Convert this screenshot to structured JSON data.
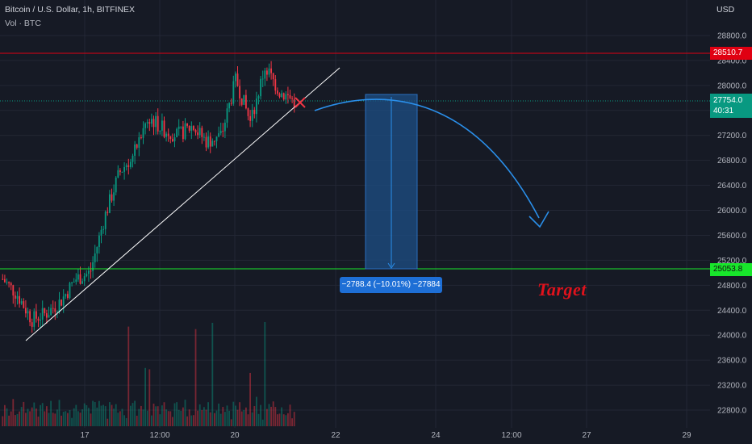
{
  "header": {
    "symbol_line": "Bitcoin / U.S. Dollar, 1h, BITFINEX",
    "volume_line": "Vol · BTC"
  },
  "price_scale": {
    "currency": "USD",
    "ticks": [
      "28800.0",
      "28400.0",
      "28000.0",
      "27600.0",
      "27200.0",
      "26800.0",
      "26400.0",
      "26000.0",
      "25600.0",
      "25200.0",
      "24800.0",
      "24400.0",
      "24000.0",
      "23600.0",
      "23200.0",
      "22800.0"
    ]
  },
  "time_scale": {
    "ticks": [
      "17",
      "12:00",
      "20",
      "22",
      "24",
      "12:00",
      "27",
      "29"
    ]
  },
  "tags": {
    "resistance": "28510.7",
    "last_price": "27754.0",
    "countdown": "40:31",
    "support": "25053.8"
  },
  "measure_label": "−2788.4 (−10.01%) −27884",
  "target_text": "Target",
  "colors": {
    "background": "#161a25",
    "grid": "#232735",
    "up": "#089981",
    "down": "#f23645",
    "resistance_line": "#e00012",
    "support_line": "#18e62b",
    "forecast_arrow": "#2a8fea",
    "measure_box": "#1e4f86",
    "target_text": "#e0121c"
  },
  "chart_data": {
    "type": "candlestick",
    "symbol": "BTC/USD",
    "timeframe": "1h",
    "exchange": "BITFINEX",
    "y_axis": {
      "range": [
        22600,
        29200
      ],
      "ticks": [
        28800,
        28400,
        28000,
        27600,
        27200,
        26800,
        26400,
        26000,
        25600,
        25200,
        24800,
        24400,
        24000,
        23600,
        23200,
        22800
      ]
    },
    "x_axis": {
      "tick_labels": [
        "17",
        "12:00",
        "20",
        "22",
        "24",
        "12:00",
        "27",
        "29"
      ]
    },
    "price_path_approx": [
      {
        "t": "Mar 16 02:00",
        "close": 24900
      },
      {
        "t": "Mar 16 06:00",
        "close": 24650
      },
      {
        "t": "Mar 16 10:00",
        "close": 24250
      },
      {
        "t": "Mar 16 14:00",
        "close": 24350
      },
      {
        "t": "Mar 16 18:00",
        "close": 24550
      },
      {
        "t": "Mar 16 22:00",
        "close": 24900
      },
      {
        "t": "Mar 17 02:00",
        "close": 25000
      },
      {
        "t": "Mar 17 06:00",
        "close": 25900
      },
      {
        "t": "Mar 17 10:00",
        "close": 26600
      },
      {
        "t": "Mar 17 14:00",
        "close": 26900
      },
      {
        "t": "Mar 17 18:00",
        "close": 27500
      },
      {
        "t": "Mar 17 22:00",
        "close": 27300
      },
      {
        "t": "Mar 18 06:00",
        "close": 27200
      },
      {
        "t": "Mar 18 14:00",
        "close": 27350
      },
      {
        "t": "Mar 18 20:00",
        "close": 27100
      },
      {
        "t": "Mar 19 02:00",
        "close": 27200
      },
      {
        "t": "Mar 19 12:00",
        "close": 28100
      },
      {
        "t": "Mar 19 20:00",
        "close": 27400
      },
      {
        "t": "Mar 20 04:00",
        "close": 28300
      },
      {
        "t": "Mar 20 12:00",
        "close": 27900
      },
      {
        "t": "Mar 20 20:00",
        "close": 27754
      }
    ],
    "lines": {
      "resistance": 28510.7,
      "support": 25053.8
    },
    "last_price": 27754.0,
    "projection": {
      "from": 27842,
      "to": 25053.8,
      "change": -2788.4,
      "change_pct": -10.01
    },
    "grid": true
  }
}
